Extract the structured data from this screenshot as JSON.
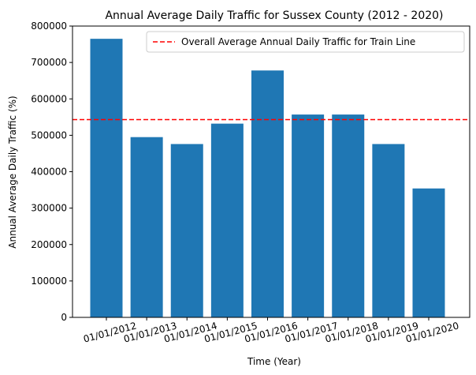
{
  "chart_data": {
    "type": "bar",
    "title": "Annual Average Daily Traffic for Sussex County (2012 - 2020)",
    "xlabel": "Time (Year)",
    "ylabel": "Annual Average Daily Traffic (%)",
    "categories": [
      "01/01/2012",
      "01/01/2013",
      "01/01/2014",
      "01/01/2015",
      "01/01/2016",
      "01/01/2017",
      "01/01/2018",
      "01/01/2019",
      "01/01/2020"
    ],
    "values": [
      765000,
      495000,
      476000,
      532000,
      678000,
      557000,
      557000,
      476000,
      354000
    ],
    "ylim": [
      0,
      800000
    ],
    "yticks": [
      "0",
      "100000",
      "200000",
      "300000",
      "400000",
      "500000",
      "600000",
      "700000",
      "800000"
    ],
    "ytick_values": [
      0,
      100000,
      200000,
      300000,
      400000,
      500000,
      600000,
      700000,
      800000
    ],
    "bar_color": "#1f77b4",
    "reference_line": {
      "value": 543000,
      "label": "Overall Average Annual Daily Traffic for Train Line",
      "color": "#ff0000",
      "style": "dashed"
    },
    "legend_position": "top-right",
    "grid": false
  }
}
